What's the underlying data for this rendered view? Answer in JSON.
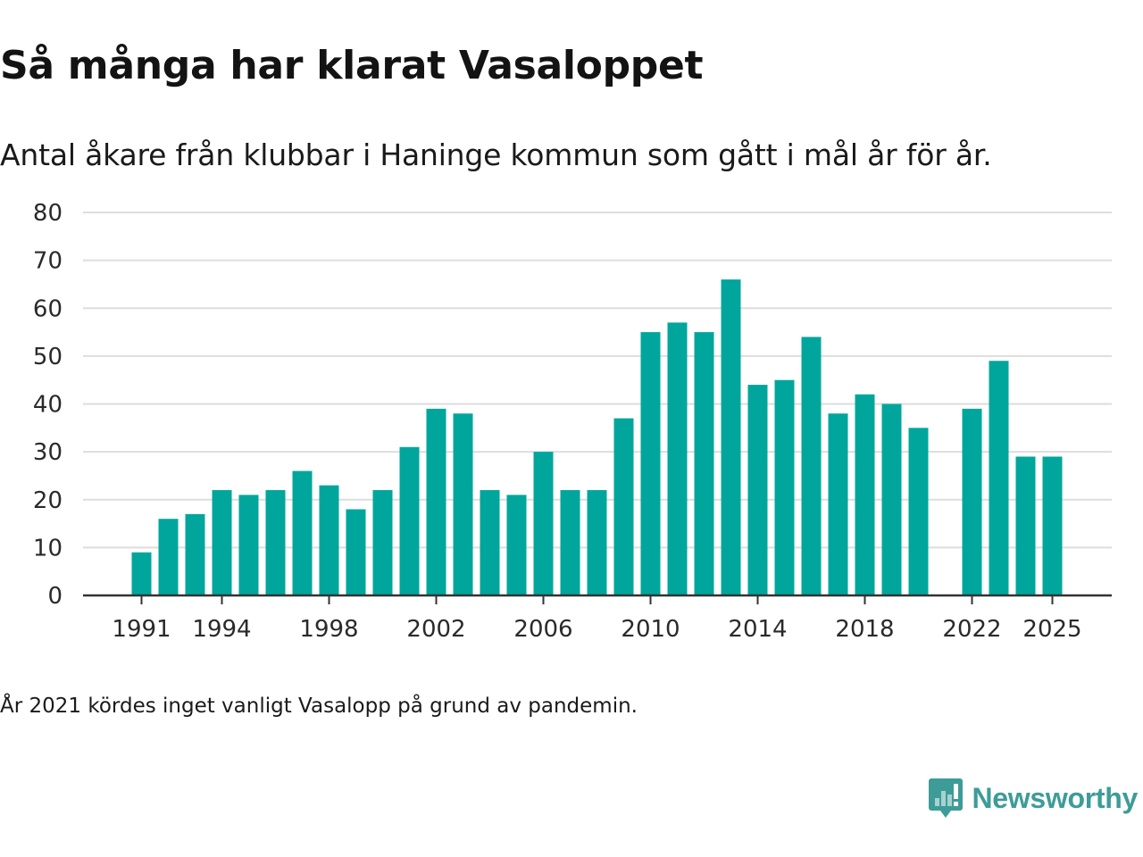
{
  "chart_data": {
    "type": "bar",
    "title": "Så många har klarat Vasaloppet",
    "subtitle": "Antal åkare från klubbar i Haninge kommun som gått i mål år för år.",
    "xlabel": "",
    "ylabel": "",
    "categories": [
      1991,
      1992,
      1993,
      1994,
      1995,
      1996,
      1997,
      1998,
      1999,
      2000,
      2001,
      2002,
      2003,
      2004,
      2005,
      2006,
      2007,
      2008,
      2009,
      2010,
      2011,
      2012,
      2013,
      2014,
      2015,
      2016,
      2017,
      2018,
      2019,
      2020,
      2021,
      2022,
      2023,
      2024,
      2025
    ],
    "values": [
      9,
      16,
      17,
      22,
      21,
      22,
      26,
      23,
      18,
      22,
      31,
      39,
      38,
      22,
      21,
      30,
      22,
      22,
      37,
      55,
      57,
      55,
      66,
      44,
      45,
      54,
      38,
      42,
      40,
      35,
      null,
      39,
      49,
      29,
      29
    ],
    "x_tick_labels": [
      "1991",
      "1994",
      "1998",
      "2002",
      "2006",
      "2010",
      "2014",
      "2018",
      "2022",
      "2025"
    ],
    "y_ticks": [
      0,
      10,
      20,
      30,
      40,
      50,
      60,
      70,
      80
    ],
    "ylim": [
      0,
      80
    ],
    "grid": true,
    "bar_color": "#00a69c",
    "note": "År 2021 kördes inget vanligt Vasalopp på grund av pandemin."
  },
  "branding": {
    "name": "Newsworthy",
    "color": "#3d9c98",
    "icon": "newsworthy-chart-bubble-icon"
  }
}
